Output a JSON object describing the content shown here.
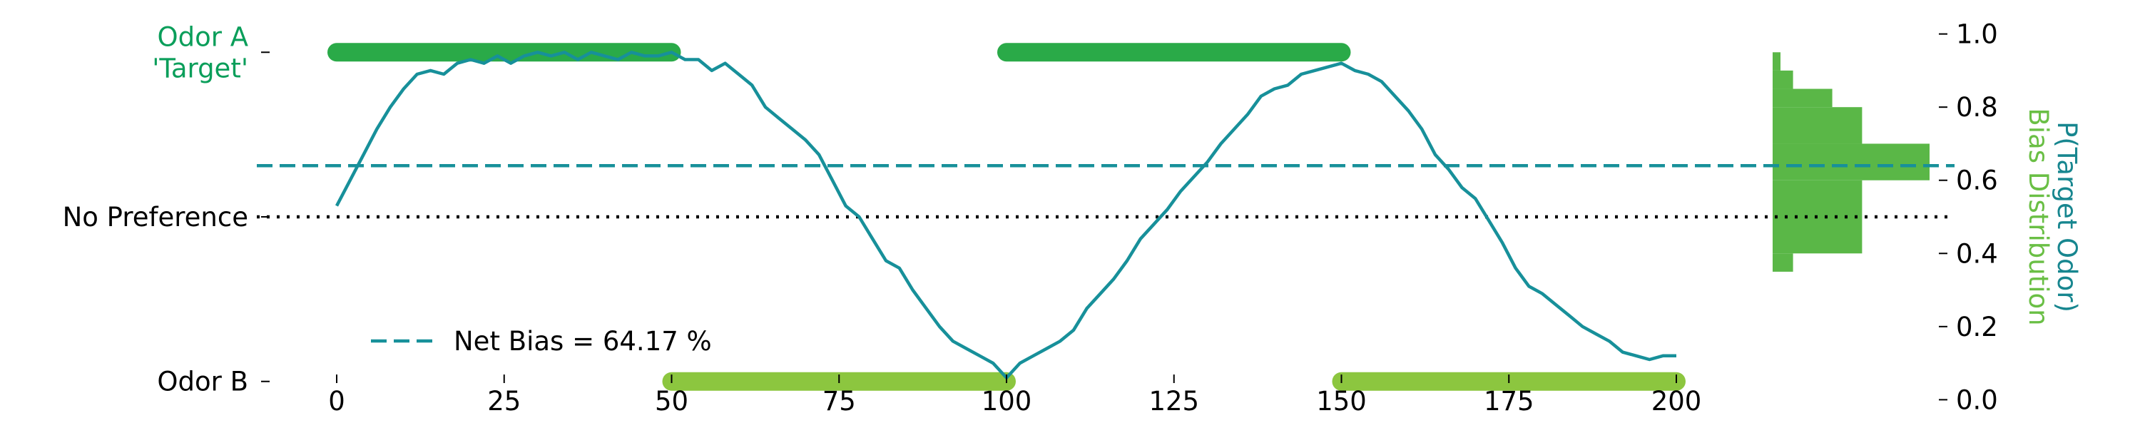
{
  "chart_data": {
    "type": "line",
    "title": "",
    "x_axis": {
      "range": [
        0,
        200
      ],
      "ticks": [
        0,
        25,
        50,
        75,
        100,
        125,
        150,
        175,
        200
      ],
      "tick_labels": [
        "0",
        "25",
        "50",
        "75",
        "100",
        "125",
        "150",
        "175",
        "200"
      ]
    },
    "left_axis": {
      "ticks": [
        {
          "value": 0.95,
          "label_lines": [
            "Odor A",
            "'Target'"
          ],
          "color": "#0a9e5a"
        },
        {
          "value": 0.5,
          "label_lines": [
            "No Preference"
          ],
          "color": "#000000"
        },
        {
          "value": 0.05,
          "label_lines": [
            "Odor B"
          ],
          "color": "#000000"
        }
      ]
    },
    "right_axis": {
      "range": [
        0,
        1
      ],
      "ticks": [
        0,
        0.2,
        0.4,
        0.6,
        0.8,
        1.0
      ],
      "tick_labels": [
        "0.0",
        "0.2",
        "0.4",
        "0.6",
        "0.8",
        "1.0"
      ],
      "label": "P(Target Odor)",
      "label_color": "#17868f",
      "label2": "Bias Distribution",
      "label2_color": "#6abf45"
    },
    "y_range": [
      -0.05,
      1.05
    ],
    "series": [
      {
        "name": "",
        "type": "line",
        "color": "#17909a",
        "x": [
          0,
          2,
          4,
          6,
          8,
          10,
          12,
          14,
          16,
          18,
          20,
          22,
          24,
          26,
          28,
          30,
          32,
          34,
          36,
          38,
          40,
          42,
          44,
          46,
          48,
          50,
          52,
          54,
          56,
          58,
          60,
          62,
          64,
          66,
          68,
          70,
          72,
          74,
          76,
          78,
          80,
          82,
          84,
          86,
          88,
          90,
          92,
          94,
          96,
          98,
          100,
          102,
          104,
          106,
          108,
          110,
          112,
          114,
          116,
          118,
          120,
          122,
          124,
          126,
          128,
          130,
          132,
          134,
          136,
          138,
          140,
          142,
          144,
          146,
          148,
          150,
          152,
          154,
          156,
          158,
          160,
          162,
          164,
          166,
          168,
          170,
          172,
          174,
          176,
          178,
          180,
          182,
          184,
          186,
          188,
          190,
          192,
          194,
          196,
          198,
          200
        ],
        "y": [
          0.53,
          0.6,
          0.67,
          0.74,
          0.8,
          0.85,
          0.89,
          0.9,
          0.89,
          0.92,
          0.93,
          0.92,
          0.94,
          0.92,
          0.94,
          0.95,
          0.94,
          0.95,
          0.93,
          0.95,
          0.94,
          0.93,
          0.95,
          0.94,
          0.94,
          0.95,
          0.93,
          0.93,
          0.9,
          0.92,
          0.89,
          0.86,
          0.8,
          0.77,
          0.74,
          0.71,
          0.67,
          0.6,
          0.53,
          0.5,
          0.44,
          0.38,
          0.36,
          0.3,
          0.25,
          0.2,
          0.16,
          0.14,
          0.12,
          0.1,
          0.06,
          0.1,
          0.12,
          0.14,
          0.16,
          0.19,
          0.25,
          0.29,
          0.33,
          0.38,
          0.44,
          0.48,
          0.52,
          0.57,
          0.61,
          0.65,
          0.7,
          0.74,
          0.78,
          0.83,
          0.85,
          0.86,
          0.89,
          0.9,
          0.91,
          0.92,
          0.9,
          0.89,
          0.87,
          0.83,
          0.79,
          0.74,
          0.67,
          0.63,
          0.58,
          0.55,
          0.49,
          0.43,
          0.36,
          0.31,
          0.29,
          0.26,
          0.23,
          0.2,
          0.18,
          0.16,
          0.13,
          0.12,
          0.11,
          0.12,
          0.12
        ]
      }
    ],
    "odor_a_periods": {
      "color": "#2aaa48",
      "y": 0.95,
      "intervals": [
        [
          0,
          50
        ],
        [
          100,
          150
        ]
      ]
    },
    "odor_b_periods": {
      "color": "#8cc63f",
      "y": 0.05,
      "intervals": [
        [
          50,
          100
        ],
        [
          150,
          200
        ]
      ]
    },
    "reference_lines": [
      {
        "label": "Net Bias = 64.17 %",
        "y": 0.64,
        "style": "dashed",
        "color": "#17909a"
      },
      {
        "label": "",
        "y": 0.5,
        "style": "dotted",
        "color": "#000000"
      }
    ],
    "histogram": {
      "color": "#5ab747",
      "orientation": "horizontal",
      "bins": [
        {
          "y0": 0.35,
          "y1": 0.4,
          "density": 0.13
        },
        {
          "y0": 0.4,
          "y1": 0.5,
          "density": 0.57
        },
        {
          "y0": 0.5,
          "y1": 0.6,
          "density": 0.57
        },
        {
          "y0": 0.6,
          "y1": 0.7,
          "density": 1.0
        },
        {
          "y0": 0.7,
          "y1": 0.8,
          "density": 0.57
        },
        {
          "y0": 0.8,
          "y1": 0.85,
          "density": 0.38
        },
        {
          "y0": 0.85,
          "y1": 0.9,
          "density": 0.13
        },
        {
          "y0": 0.9,
          "y1": 0.95,
          "density": 0.05
        }
      ]
    },
    "legend": {
      "placement": "lower-left",
      "entries": [
        {
          "label": "Net Bias = 64.17 %",
          "style": "dashed",
          "color": "#17909a"
        }
      ]
    },
    "grid": false
  }
}
